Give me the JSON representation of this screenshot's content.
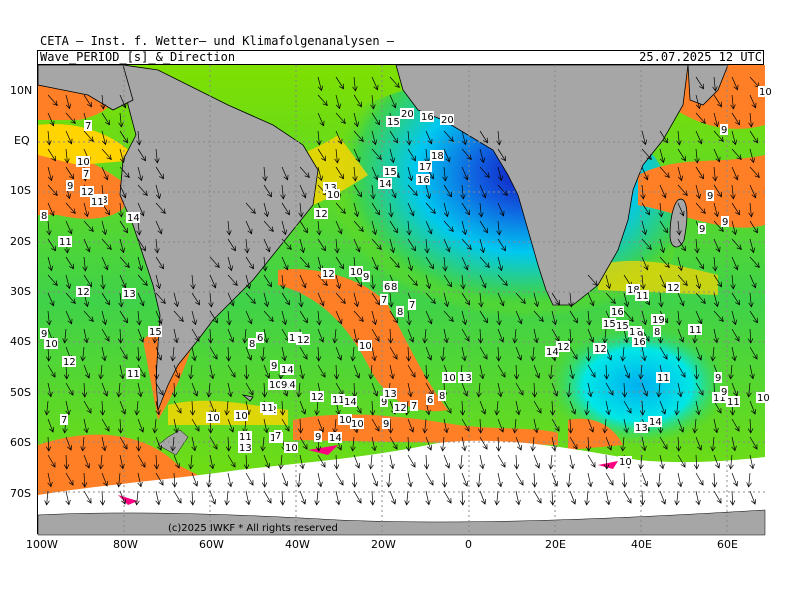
{
  "header": {
    "institute": "CETA – Inst. f. Wetter– und Klimafolgenanalysen –",
    "parameter": "Wave_PERIOD_[s]_&_Direction",
    "valid_time": "25.07.2025 12 UTC"
  },
  "copyright": "(c)2025 IWKF * All rights reserved",
  "axes": {
    "lat_labels": [
      "10N",
      "EQ",
      "10S",
      "20S",
      "30S",
      "40S",
      "50S",
      "60S",
      "70S"
    ],
    "lon_labels": [
      "100W",
      "80W",
      "60W",
      "40W",
      "20W",
      "0",
      "20E",
      "40E",
      "60E"
    ]
  },
  "colors": {
    "land": "#a6a6a6",
    "ice": "#ffffff",
    "period_short": "#ff7f27",
    "period_low_mid": "#ffd400",
    "period_mid": "#7fe000",
    "period_mid_high": "#3fd24a",
    "period_high": "#00e7e7",
    "period_very_high": "#1060e0",
    "period_extreme": "#1018c0",
    "period_min": "#ff0080"
  },
  "period_labels": [
    {
      "t": "7"
    },
    {
      "t": "10"
    },
    {
      "t": "7"
    },
    {
      "t": "9"
    },
    {
      "t": "12"
    },
    {
      "t": "13"
    },
    {
      "t": "11"
    },
    {
      "t": "8"
    },
    {
      "t": "14"
    },
    {
      "t": "11"
    },
    {
      "t": "12"
    },
    {
      "t": "13"
    },
    {
      "t": "9"
    },
    {
      "t": "10"
    },
    {
      "t": "15"
    },
    {
      "t": "12"
    },
    {
      "t": "11"
    },
    {
      "t": "7"
    },
    {
      "t": "10"
    },
    {
      "t": "13"
    },
    {
      "t": "15"
    },
    {
      "t": "20"
    },
    {
      "t": "16"
    },
    {
      "t": "20"
    },
    {
      "t": "18"
    },
    {
      "t": "17"
    },
    {
      "t": "15"
    },
    {
      "t": "16"
    },
    {
      "t": "14"
    },
    {
      "t": "13"
    },
    {
      "t": "10"
    },
    {
      "t": "12"
    },
    {
      "t": "12"
    },
    {
      "t": "10"
    },
    {
      "t": "9"
    },
    {
      "t": "6"
    },
    {
      "t": "8"
    },
    {
      "t": "7"
    },
    {
      "t": "8"
    },
    {
      "t": "7"
    },
    {
      "t": "6"
    },
    {
      "t": "13"
    },
    {
      "t": "12"
    },
    {
      "t": "8"
    },
    {
      "t": "10"
    },
    {
      "t": "14"
    },
    {
      "t": "9"
    },
    {
      "t": "10"
    },
    {
      "t": "14"
    },
    {
      "t": "12"
    },
    {
      "t": "9"
    },
    {
      "t": "11"
    },
    {
      "t": "14"
    },
    {
      "t": "9"
    },
    {
      "t": "12"
    },
    {
      "t": "7"
    },
    {
      "t": "6"
    },
    {
      "t": "8"
    },
    {
      "t": "10"
    },
    {
      "t": "13"
    },
    {
      "t": "10"
    },
    {
      "t": "9"
    },
    {
      "t": "12"
    },
    {
      "t": "11"
    },
    {
      "t": "10"
    },
    {
      "t": "9"
    },
    {
      "t": "11"
    },
    {
      "t": "7"
    },
    {
      "t": "10"
    },
    {
      "t": "9"
    },
    {
      "t": "13"
    },
    {
      "t": "10"
    },
    {
      "t": "11"
    },
    {
      "t": "14"
    },
    {
      "t": "12"
    },
    {
      "t": "16"
    },
    {
      "t": "15"
    },
    {
      "t": "18"
    },
    {
      "t": "11"
    },
    {
      "t": "10"
    },
    {
      "t": "9"
    },
    {
      "t": "16"
    },
    {
      "t": "15"
    },
    {
      "t": "8"
    },
    {
      "t": "19"
    },
    {
      "t": "12"
    },
    {
      "t": "11"
    },
    {
      "t": "11"
    },
    {
      "t": "9"
    },
    {
      "t": "13"
    },
    {
      "t": "14"
    },
    {
      "t": "10"
    },
    {
      "t": "10"
    },
    {
      "t": "9"
    },
    {
      "t": "9"
    },
    {
      "t": "9"
    },
    {
      "t": "10"
    },
    {
      "t": "11"
    },
    {
      "t": "9"
    },
    {
      "t": "9"
    },
    {
      "t": "11"
    },
    {
      "t": "14"
    },
    {
      "t": "12"
    }
  ]
}
